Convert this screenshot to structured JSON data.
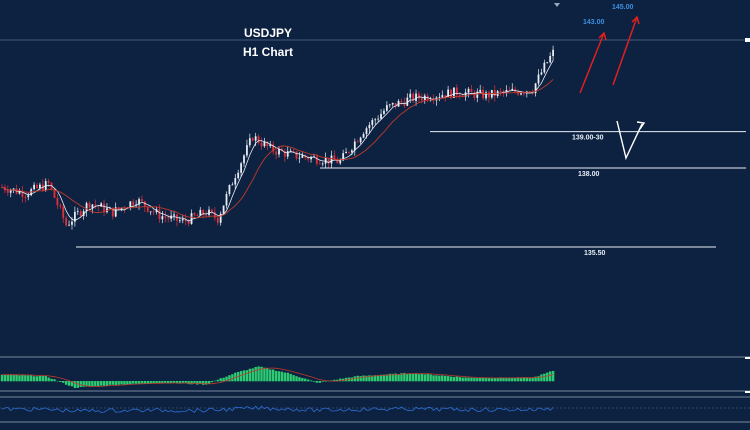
{
  "chart_data": {
    "type": "candlestick",
    "title": "USDJPY",
    "subtitle": "H1 Chart",
    "colors": {
      "background": "#0d2240",
      "up_candle": "#e8edf5",
      "down_candle": "#e0303a",
      "ma_fast": "#e8edf5",
      "ma_slow": "#c0392b",
      "target_arrow": "#e02020",
      "hist_up": "#2ecc71",
      "hist_signal": "#c0392b",
      "oscillator": "#2e6fd8",
      "level_line": "#e8edf5"
    },
    "levels": [
      {
        "label": "139.00-30",
        "value": 139.15
      },
      {
        "label": "138.00",
        "value": 138.0
      },
      {
        "label": "135.50",
        "value": 135.5
      }
    ],
    "targets": [
      {
        "label": "143.00",
        "value": 143.0
      },
      {
        "label": "145.00",
        "value": 145.0
      }
    ],
    "path_points": [
      {
        "t": 0,
        "p": 137.4
      },
      {
        "t": 8,
        "p": 137.2
      },
      {
        "t": 16,
        "p": 137.5
      },
      {
        "t": 22,
        "p": 136.2
      },
      {
        "t": 30,
        "p": 136.9
      },
      {
        "t": 38,
        "p": 136.6
      },
      {
        "t": 46,
        "p": 137.0
      },
      {
        "t": 54,
        "p": 136.5
      },
      {
        "t": 62,
        "p": 136.3
      },
      {
        "t": 70,
        "p": 136.6
      },
      {
        "t": 74,
        "p": 136.4
      },
      {
        "t": 80,
        "p": 137.8
      },
      {
        "t": 86,
        "p": 139.0
      },
      {
        "t": 92,
        "p": 138.6
      },
      {
        "t": 100,
        "p": 138.4
      },
      {
        "t": 108,
        "p": 138.3
      },
      {
        "t": 116,
        "p": 138.2
      },
      {
        "t": 124,
        "p": 139.2
      },
      {
        "t": 132,
        "p": 139.9
      },
      {
        "t": 140,
        "p": 140.2
      },
      {
        "t": 148,
        "p": 140.3
      },
      {
        "t": 156,
        "p": 140.4
      },
      {
        "t": 166,
        "p": 140.3
      },
      {
        "t": 174,
        "p": 140.4
      },
      {
        "t": 182,
        "p": 140.5
      },
      {
        "t": 186,
        "p": 141.2
      },
      {
        "t": 190,
        "p": 141.8
      }
    ],
    "histogram": [
      {
        "t": 0,
        "v": 0.4
      },
      {
        "t": 15,
        "v": 0.3
      },
      {
        "t": 25,
        "v": -0.4
      },
      {
        "t": 40,
        "v": -0.2
      },
      {
        "t": 55,
        "v": -0.1
      },
      {
        "t": 70,
        "v": -0.2
      },
      {
        "t": 80,
        "v": 0.5
      },
      {
        "t": 88,
        "v": 0.9
      },
      {
        "t": 98,
        "v": 0.5
      },
      {
        "t": 108,
        "v": -0.1
      },
      {
        "t": 122,
        "v": 0.3
      },
      {
        "t": 140,
        "v": 0.5
      },
      {
        "t": 160,
        "v": 0.2
      },
      {
        "t": 182,
        "v": 0.2
      },
      {
        "t": 190,
        "v": 0.7
      }
    ]
  }
}
